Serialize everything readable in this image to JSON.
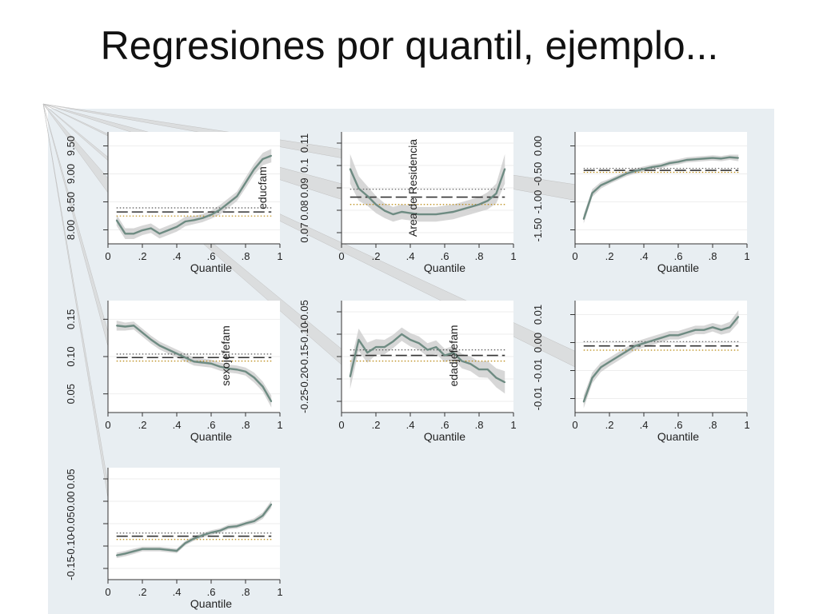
{
  "slide": {
    "title": "Regresiones por quantil, ejemplo..."
  },
  "colors": {
    "background_panel": "#e8eef2",
    "plot_bg": "#ffffff",
    "line": "#6e8b82",
    "band": "#c9c9c9",
    "ols": "#333333",
    "ols_ci": "#b8860b",
    "callout": "#d7d7d7"
  },
  "chart_data": [
    {
      "type": "line",
      "variable": "educfam",
      "xlabel": "Quantile",
      "x_ticks": [
        "0",
        ".2",
        ".4",
        ".6",
        ".8",
        "1"
      ],
      "y_ticks": [
        "8.00",
        "8.50",
        "9.00",
        "9.50"
      ],
      "x": [
        0.05,
        0.1,
        0.15,
        0.2,
        0.25,
        0.3,
        0.35,
        0.4,
        0.45,
        0.5,
        0.55,
        0.6,
        0.65,
        0.7,
        0.75,
        0.8,
        0.85,
        0.9,
        0.95
      ],
      "y": [
        8.3,
        8.1,
        8.1,
        8.15,
        8.18,
        8.1,
        8.15,
        8.2,
        8.28,
        8.3,
        8.33,
        8.38,
        8.45,
        8.55,
        8.65,
        8.85,
        9.05,
        9.2,
        9.25
      ],
      "band": [
        0.08,
        0.08,
        0.08,
        0.07,
        0.07,
        0.07,
        0.07,
        0.07,
        0.07,
        0.06,
        0.06,
        0.06,
        0.07,
        0.07,
        0.07,
        0.08,
        0.08,
        0.09,
        0.1
      ],
      "ols": 8.42,
      "ols_ci": [
        8.36,
        8.48
      ],
      "ylim": [
        7.95,
        9.6
      ],
      "xlim": [
        0,
        1
      ]
    },
    {
      "type": "line",
      "variable": "Area de Residencia",
      "xlabel": "Quantile",
      "x_ticks": [
        "0",
        ".2",
        ".4",
        ".6",
        ".8",
        "1"
      ],
      "y_ticks": [
        "0.07",
        "0.08",
        "0.09",
        "0.1",
        "0.11"
      ],
      "x": [
        0.05,
        0.1,
        0.15,
        0.2,
        0.25,
        0.3,
        0.35,
        0.4,
        0.45,
        0.5,
        0.55,
        0.6,
        0.65,
        0.7,
        0.75,
        0.8,
        0.85,
        0.9,
        0.95
      ],
      "y": [
        0.0985,
        0.0905,
        0.0875,
        0.084,
        0.0815,
        0.08,
        0.081,
        0.0805,
        0.08,
        0.08,
        0.08,
        0.0805,
        0.081,
        0.082,
        0.083,
        0.084,
        0.0855,
        0.0885,
        0.0985
      ],
      "band": [
        0.006,
        0.005,
        0.004,
        0.0035,
        0.003,
        0.003,
        0.003,
        0.003,
        0.003,
        0.003,
        0.003,
        0.003,
        0.003,
        0.003,
        0.003,
        0.003,
        0.0035,
        0.004,
        0.006
      ],
      "ols": 0.087,
      "ols_ci": [
        0.084,
        0.0902
      ],
      "ylim": [
        0.068,
        0.1135
      ],
      "xlim": [
        0,
        1
      ]
    },
    {
      "type": "line",
      "variable": "",
      "xlabel": "Quantile",
      "x_ticks": [
        "0",
        ".2",
        ".4",
        ".6",
        ".8",
        "1"
      ],
      "y_ticks": [
        "-1.50",
        "-1.00",
        "-0.50",
        "0.00"
      ],
      "x": [
        0.05,
        0.1,
        0.15,
        0.2,
        0.25,
        0.3,
        0.35,
        0.4,
        0.45,
        0.5,
        0.55,
        0.6,
        0.65,
        0.7,
        0.75,
        0.8,
        0.85,
        0.9,
        0.95
      ],
      "y": [
        -1.22,
        -0.82,
        -0.7,
        -0.64,
        -0.58,
        -0.52,
        -0.48,
        -0.45,
        -0.42,
        -0.4,
        -0.36,
        -0.34,
        -0.31,
        -0.3,
        -0.29,
        -0.28,
        -0.29,
        -0.27,
        -0.28
      ],
      "band": [
        0.07,
        0.06,
        0.05,
        0.04,
        0.04,
        0.04,
        0.04,
        0.04,
        0.04,
        0.04,
        0.04,
        0.04,
        0.04,
        0.04,
        0.04,
        0.04,
        0.04,
        0.04,
        0.05
      ],
      "ols": -0.47,
      "ols_ci": [
        -0.5,
        -0.44
      ],
      "ylim": [
        -1.6,
        0.12
      ],
      "xlim": [
        0,
        1
      ]
    },
    {
      "type": "line",
      "variable": "sexojefefam",
      "xlabel": "Quantile",
      "x_ticks": [
        "0",
        ".2",
        ".4",
        ".6",
        ".8",
        "1"
      ],
      "y_ticks": [
        "0.05",
        "0.10",
        "0.15"
      ],
      "x": [
        0.05,
        0.1,
        0.15,
        0.2,
        0.25,
        0.3,
        0.35,
        0.4,
        0.45,
        0.5,
        0.55,
        0.6,
        0.65,
        0.7,
        0.75,
        0.8,
        0.85,
        0.9,
        0.95
      ],
      "y": [
        0.132,
        0.131,
        0.132,
        0.125,
        0.118,
        0.112,
        0.108,
        0.104,
        0.1,
        0.096,
        0.095,
        0.094,
        0.091,
        0.089,
        0.088,
        0.086,
        0.08,
        0.071,
        0.056
      ],
      "band": [
        0.005,
        0.004,
        0.004,
        0.004,
        0.004,
        0.004,
        0.004,
        0.004,
        0.004,
        0.004,
        0.004,
        0.004,
        0.004,
        0.004,
        0.004,
        0.004,
        0.005,
        0.005,
        0.006
      ],
      "ols": 0.1,
      "ols_ci": [
        0.0965,
        0.1035
      ],
      "ylim": [
        0.045,
        0.157
      ],
      "xlim": [
        0,
        1
      ]
    },
    {
      "type": "line",
      "variable": "edadjefefam",
      "xlabel": "Quantile",
      "x_ticks": [
        "0",
        ".2",
        ".4",
        ".6",
        ".8",
        "1"
      ],
      "y_ticks": [
        "-0.25",
        "-0.20",
        "-0.15",
        "-0.10",
        "-0.05"
      ],
      "x": [
        0.05,
        0.1,
        0.15,
        0.2,
        0.25,
        0.3,
        0.35,
        0.4,
        0.45,
        0.5,
        0.55,
        0.6,
        0.65,
        0.7,
        0.75,
        0.8,
        0.85,
        0.9,
        0.95
      ],
      "y": [
        -0.188,
        -0.122,
        -0.145,
        -0.135,
        -0.135,
        -0.125,
        -0.112,
        -0.122,
        -0.128,
        -0.14,
        -0.135,
        -0.15,
        -0.145,
        -0.16,
        -0.165,
        -0.175,
        -0.175,
        -0.19,
        -0.198
      ],
      "band": [
        0.022,
        0.02,
        0.018,
        0.014,
        0.013,
        0.012,
        0.012,
        0.012,
        0.012,
        0.012,
        0.012,
        0.012,
        0.012,
        0.013,
        0.013,
        0.014,
        0.015,
        0.017,
        0.02
      ],
      "ols": -0.15,
      "ols_ci": [
        -0.16,
        -0.14
      ],
      "ylim": [
        -0.252,
        -0.052
      ],
      "xlim": [
        0,
        1
      ]
    },
    {
      "type": "line",
      "variable": "",
      "xlabel": "Quantile",
      "x_ticks": [
        "0",
        ".2",
        ".4",
        ".6",
        ".8",
        "1"
      ],
      "y_ticks": [
        "-0.01",
        "-0.01",
        "0.00",
        "0.01"
      ],
      "x": [
        0.05,
        0.1,
        0.15,
        0.2,
        0.25,
        0.3,
        0.35,
        0.4,
        0.45,
        0.5,
        0.55,
        0.6,
        0.65,
        0.7,
        0.75,
        0.8,
        0.85,
        0.9,
        0.95
      ],
      "y": [
        -0.0165,
        -0.012,
        -0.01,
        -0.009,
        -0.008,
        -0.007,
        -0.006,
        -0.0055,
        -0.005,
        -0.0045,
        -0.004,
        -0.004,
        -0.0035,
        -0.003,
        -0.003,
        -0.0025,
        -0.003,
        -0.0025,
        -0.0005
      ],
      "band": [
        0.0012,
        0.001,
        0.0009,
        0.0008,
        0.0008,
        0.0008,
        0.0008,
        0.0008,
        0.0008,
        0.0008,
        0.0008,
        0.0008,
        0.0008,
        0.0008,
        0.0008,
        0.0008,
        0.0009,
        0.001,
        0.0012
      ],
      "ols": -0.006,
      "ols_ci": [
        -0.0068,
        -0.0052
      ],
      "ylim": [
        -0.0185,
        0.0025
      ],
      "xlim": [
        0,
        1
      ]
    },
    {
      "type": "line",
      "variable": "",
      "xlabel": "Quantile",
      "x_ticks": [
        "0",
        ".2",
        ".4",
        ".6",
        ".8",
        "1"
      ],
      "y_ticks": [
        "-0.15",
        "-0.10",
        "-0.05",
        "0.00",
        "0.05"
      ],
      "x": [
        0.05,
        0.1,
        0.15,
        0.2,
        0.25,
        0.3,
        0.35,
        0.4,
        0.45,
        0.5,
        0.55,
        0.6,
        0.65,
        0.7,
        0.75,
        0.8,
        0.85,
        0.9,
        0.95
      ],
      "y": [
        -0.122,
        -0.118,
        -0.113,
        -0.108,
        -0.108,
        -0.108,
        -0.11,
        -0.112,
        -0.095,
        -0.085,
        -0.078,
        -0.072,
        -0.068,
        -0.06,
        -0.058,
        -0.052,
        -0.047,
        -0.035,
        -0.01
      ],
      "band": [
        0.006,
        0.006,
        0.006,
        0.005,
        0.005,
        0.005,
        0.005,
        0.005,
        0.005,
        0.005,
        0.005,
        0.005,
        0.005,
        0.005,
        0.005,
        0.005,
        0.006,
        0.007,
        0.008
      ],
      "ols": -0.08,
      "ols_ci": [
        -0.087,
        -0.073
      ],
      "ylim": [
        -0.175,
        0.07
      ],
      "xlim": [
        0,
        1
      ]
    }
  ]
}
